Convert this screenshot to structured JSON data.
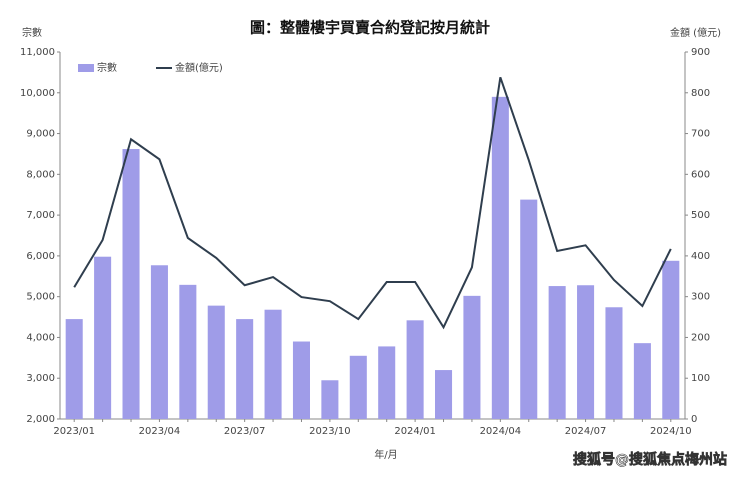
{
  "chart_data": {
    "type": "bar-line",
    "title": "圖：整體樓宇買賣合約登記按月統計",
    "y_label": "宗數",
    "y2_label": "金額 (億元)",
    "x_label": "年/月",
    "annotation": "搜狐号@搜狐焦点梅州站",
    "categories": [
      "2023/01",
      null,
      null,
      "2023/04",
      null,
      null,
      "2023/07",
      null,
      null,
      "2023/10",
      null,
      null,
      "2024/01",
      null,
      null,
      "2024/04",
      null,
      null,
      "2024/07",
      null,
      null,
      "2024/10"
    ],
    "series": [
      {
        "name": "宗數",
        "type": "bar",
        "color": "#9f9ce8",
        "values": [
          4450,
          5980,
          8620,
          5770,
          5290,
          4780,
          4450,
          4680,
          3900,
          2950,
          3550,
          3780,
          4420,
          3200,
          5020,
          9900,
          7380,
          5260,
          5280,
          4740,
          3860,
          5880
        ]
      },
      {
        "name": "金額(億元)",
        "type": "line",
        "axis": "y2",
        "color": "#2f3e4e",
        "values": [
          323,
          439,
          686,
          637,
          444,
          395,
          328,
          348,
          299,
          289,
          245,
          336,
          336,
          225,
          372,
          838,
          635,
          412,
          426,
          341,
          277,
          417
        ]
      }
    ],
    "ylim": [
      2000,
      11000
    ],
    "yticks": [
      {
        "value": 2000,
        "label": "2,000"
      },
      {
        "value": 3000,
        "label": "3,000"
      },
      {
        "value": 4000,
        "label": "4,000"
      },
      {
        "value": 5000,
        "label": "5,000"
      },
      {
        "value": 6000,
        "label": "6,000"
      },
      {
        "value": 7000,
        "label": "7,000"
      },
      {
        "value": 8000,
        "label": "8,000"
      },
      {
        "value": 9000,
        "label": "9,000"
      },
      {
        "value": 10000,
        "label": "10,000"
      },
      {
        "value": 11000,
        "label": "11,000"
      }
    ],
    "y2lim": [
      0,
      900
    ],
    "y2ticks": [
      0,
      100,
      200,
      300,
      400,
      500,
      600,
      700,
      800,
      900
    ],
    "legend": "top-left"
  }
}
